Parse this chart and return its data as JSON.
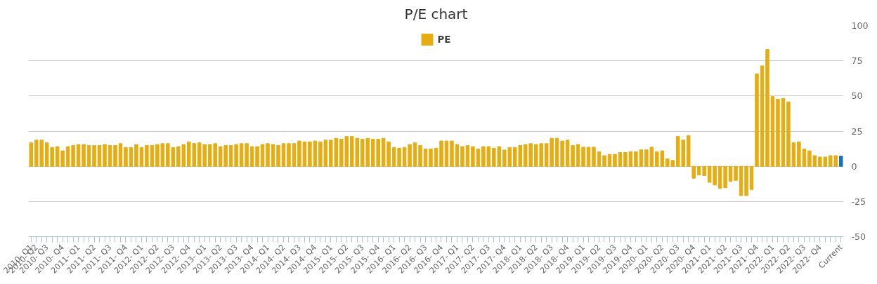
{
  "chart_data": {
    "type": "bar",
    "title": "P/E chart",
    "categories": [
      "2010- Q1",
      "2010- Q2",
      null,
      "2010- Q3",
      null,
      null,
      "2010- Q4",
      null,
      null,
      "2011- Q1",
      null,
      null,
      "2011- Q2",
      null,
      null,
      "2011- Q3",
      null,
      null,
      "2011- Q4",
      null,
      null,
      "2012- Q1",
      null,
      null,
      "2012- Q2",
      null,
      null,
      "2012- Q3",
      null,
      null,
      "2012- Q4",
      null,
      null,
      "2013- Q1",
      null,
      null,
      "2013- Q2",
      null,
      null,
      "2013- Q3",
      null,
      null,
      "2013- Q4",
      null,
      null,
      "2014- Q1",
      null,
      null,
      "2014- Q2",
      null,
      null,
      "2014- Q3",
      null,
      null,
      "2014- Q4",
      null,
      null,
      "2015- Q1",
      null,
      null,
      "2015- Q2",
      null,
      null,
      "2015- Q3",
      null,
      null,
      "2015- Q4",
      null,
      null,
      "2016- Q1",
      null,
      null,
      "2016- Q2",
      null,
      null,
      "2016- Q3",
      null,
      null,
      "2016- Q4",
      null,
      null,
      "2017- Q1",
      null,
      null,
      "2017- Q2",
      null,
      null,
      "2017- Q3",
      null,
      null,
      "2017- Q4",
      null,
      null,
      "2018- Q1",
      null,
      null,
      "2018- Q2",
      null,
      null,
      "2018- Q3",
      null,
      null,
      "2018- Q4",
      null,
      null,
      "2019- Q1",
      null,
      null,
      "2019- Q2",
      null,
      null,
      "2019- Q3",
      null,
      null,
      "2019- Q4",
      null,
      null,
      "2020- Q1",
      null,
      null,
      "2020- Q2",
      null,
      null,
      "2020- Q3",
      null,
      null,
      "2020- Q4",
      null,
      null,
      "2021- Q1",
      null,
      null,
      "2021- Q2",
      null,
      null,
      "2021- Q3",
      null,
      null,
      "2021- Q4",
      null,
      null,
      "2022- Q1",
      null,
      null,
      "2022- Q2",
      null,
      null,
      "2022- Q3",
      null,
      null,
      "2022- Q4",
      null,
      null,
      null,
      "Current"
    ],
    "series": [
      {
        "name": "PE",
        "color": "#e6ad12",
        "values": [
          16.7,
          18.6,
          18.6,
          16.7,
          13.4,
          14.0,
          11.0,
          14.0,
          14.8,
          15.5,
          15.5,
          14.8,
          14.8,
          14.8,
          15.5,
          14.8,
          14.8,
          16.1,
          13.4,
          13.4,
          15.5,
          13.4,
          14.8,
          14.8,
          15.5,
          16.1,
          16.1,
          13.4,
          14.0,
          15.5,
          17.4,
          16.1,
          16.7,
          15.5,
          15.5,
          16.1,
          14.0,
          14.8,
          14.8,
          15.5,
          16.1,
          16.1,
          14.0,
          14.0,
          15.5,
          16.1,
          15.5,
          14.8,
          16.1,
          16.1,
          16.1,
          18.0,
          17.4,
          17.4,
          18.0,
          17.4,
          18.6,
          18.6,
          19.9,
          19.3,
          21.2,
          21.2,
          19.9,
          19.3,
          19.9,
          19.3,
          19.3,
          19.9,
          17.4,
          13.4,
          12.9,
          13.4,
          15.5,
          16.7,
          14.8,
          12.3,
          12.3,
          12.9,
          18.0,
          18.0,
          18.0,
          15.5,
          14.0,
          14.8,
          14.0,
          12.3,
          14.0,
          14.0,
          12.9,
          14.0,
          11.6,
          13.4,
          13.4,
          14.8,
          15.5,
          16.1,
          15.5,
          16.1,
          16.1,
          19.9,
          19.9,
          18.0,
          18.6,
          14.8,
          15.5,
          13.6,
          13.6,
          13.6,
          10.4,
          7.6,
          8.5,
          8.5,
          9.8,
          9.8,
          10.4,
          10.4,
          11.7,
          11.7,
          13.6,
          10.4,
          11.0,
          5.3,
          4.2,
          21.2,
          18.6,
          21.8,
          -8.5,
          -6.1,
          -6.6,
          -11.4,
          -13.3,
          -15.7,
          -15.2,
          -10.8,
          -10.0,
          -20.8,
          -20.8,
          -16.5,
          65.7,
          71.4,
          83,
          49.6,
          47.7,
          48.3,
          45.8,
          16.7,
          17.4,
          12.3,
          11.0,
          7.6,
          6.6,
          6.6,
          7.6,
          7.6,
          7.2
        ],
        "colors": [
          null,
          null,
          null,
          null,
          null,
          null,
          null,
          null,
          null,
          null,
          "#e6ad12",
          "#e6ad12",
          "#e6ad12",
          "#e6ad12",
          "#e6ad12",
          "#e6ad12",
          "#e6ad12",
          "#e6ad12",
          "#e6ad12",
          "#e6ad12",
          "#e6ad12",
          "#e6ad12",
          "#e6ad12",
          "#e6ad12",
          "#e6ad12",
          "#e6ad12",
          "#e6ad12",
          "#e6ad12",
          "#e6ad12",
          "#e6ad12",
          "#e6ad12",
          "#e6ad12",
          "#e6ad12",
          "#e6ad12",
          "#e6ad12",
          "#e6ad12",
          "#e6ad12",
          "#e6ad12",
          "#e6ad12",
          "#e6ad12",
          "#e6ad12",
          "#e6ad12",
          "#e6ad12",
          "#e6ad12",
          "#e6ad12",
          "#e6ad12",
          "#e6ad12",
          "#e6ad12",
          "#e6ad12",
          "#e6ad12",
          "#e6ad12",
          "#e6ad12",
          "#e6ad12",
          "#e6ad12",
          "#e6ad12",
          "#e6ad12",
          "#e6ad12",
          "#e6ad12",
          "#e6ad12",
          "#e6ad12",
          "#e6ad12",
          "#e6ad12",
          "#e6ad12",
          "#e6ad12",
          "#e6ad12",
          "#e6ad12",
          "#e6ad12",
          "#e6ad12",
          "#e6ad12",
          "#e6ad12",
          "#e6ad12",
          "#e6ad12",
          "#e6ad12",
          "#e6ad12",
          "#e6ad12",
          "#e6ad12",
          "#e6ad12",
          "#e6ad12",
          "#e6ad12",
          "#e6ad12",
          "#e6ad12",
          "#e6ad12",
          "#e6ad12",
          "#e6ad12",
          "#e6ad12",
          "#e6ad12",
          "#e6ad12",
          "#e6ad12",
          "#e6ad12",
          "#e6ad12",
          "#e6ad12",
          "#e6ad12",
          "#e6ad12",
          "#e6ad12",
          "#e6ad12",
          "#e6ad12",
          "#e6ad12",
          "#e6ad12",
          "#e6ad12",
          "#e6ad12",
          "#e6ad12",
          "#e6ad12",
          "#e6ad12",
          "#e6ad12",
          "#e6ad12",
          "#e6ad12",
          "#e6ad12",
          "#e6ad12",
          "#e6ad12",
          "#e6ad12",
          "#e6ad12",
          "#e6ad12",
          "#e6ad12",
          "#e6ad12",
          "#e6ad12",
          "#e6ad12",
          "#e6ad12",
          "#e6ad12",
          "#e6ad12",
          "#e6ad12",
          "#e6ad12",
          "#e6ad12",
          "#e6ad12",
          "#e6ad12",
          "#e6ad12",
          "#e6ad12",
          "#e6ad12",
          "#e6ad12",
          "#e6ad12",
          "#e6ad12",
          "#e6ad12",
          "#e6ad12",
          "#e6ad12",
          "#e6ad12",
          "#e6ad12",
          "#e6ad12",
          "#e6ad12",
          "#e6ad12",
          "#e6ad12",
          "#e6ad12",
          "#e6ad12",
          "#e6ad12",
          "#e6ad12",
          "#e6ad12",
          "#e6ad12",
          "#e6ad12",
          "#e6ad12",
          "#e6ad12",
          "#e6ad12",
          "#e6ad12",
          "#e6ad12",
          "#e6ad12",
          "#e6ad12",
          "#e6ad12",
          "#1b72b5"
        ]
      }
    ],
    "ylim": [
      -50,
      100
    ],
    "yticks": [
      -50,
      -25,
      0,
      25,
      50,
      75,
      100
    ],
    "grid": "y",
    "legend": "top"
  }
}
